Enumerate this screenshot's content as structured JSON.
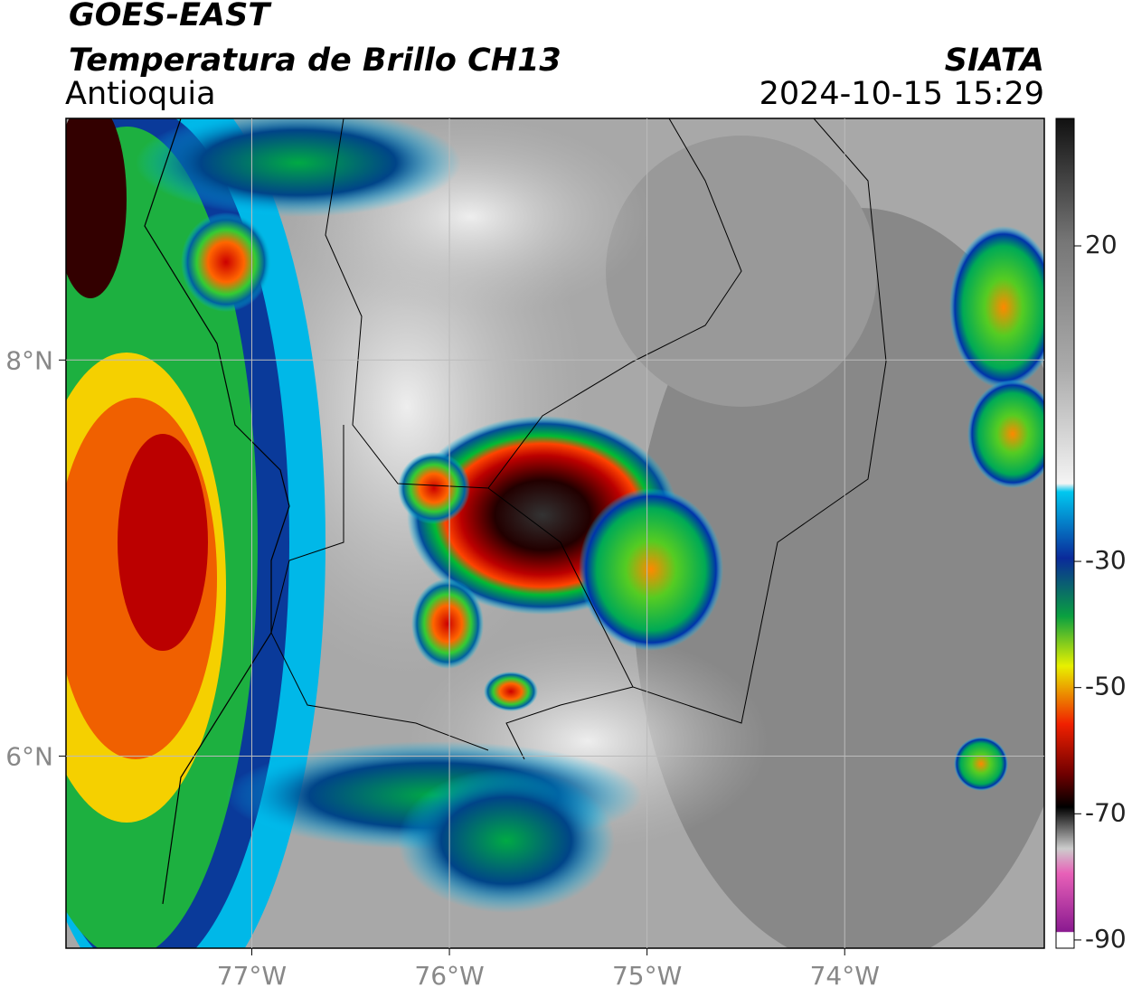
{
  "header": {
    "title": "GOES-EAST",
    "subtitle": "Temperatura de Brillo CH13",
    "region": "Antioquia",
    "source": "SIATA",
    "datetime": "2024-10-15 15:29"
  },
  "map": {
    "lonlim": [
      -77.94,
      -72.99
    ],
    "latlim": [
      5.03,
      9.22
    ],
    "lon_ticks": [
      {
        "value": -77,
        "label": "77°W"
      },
      {
        "value": -76,
        "label": "76°W"
      },
      {
        "value": -75,
        "label": "75°W"
      },
      {
        "value": -74,
        "label": "74°W"
      }
    ],
    "lat_ticks": [
      {
        "value": 8,
        "label": "8°N"
      },
      {
        "value": 6,
        "label": "6°N"
      }
    ]
  },
  "colorbar": {
    "lim": [
      -91.3,
      40.2
    ],
    "ticks": [
      20,
      -30,
      -50,
      -70,
      -90
    ]
  }
}
